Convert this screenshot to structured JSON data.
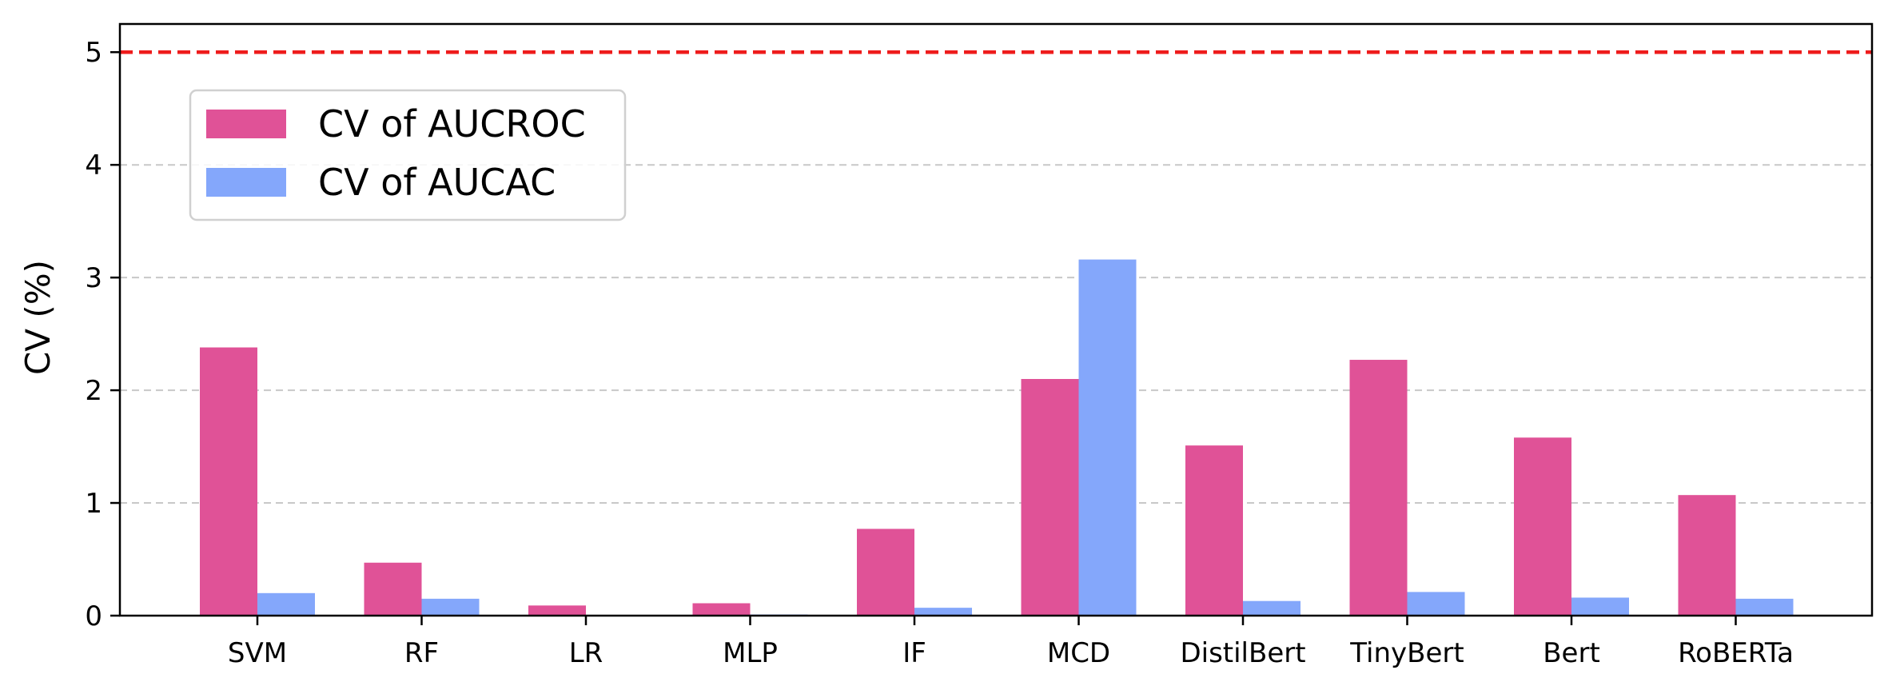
{
  "chart_data": {
    "type": "bar",
    "title": "",
    "xlabel": "",
    "ylabel": "CV (%)",
    "categories": [
      "SVM",
      "RF",
      "LR",
      "MLP",
      "IF",
      "MCD",
      "DistilBert",
      "TinyBert",
      "Bert",
      "RoBERTa"
    ],
    "series": [
      {
        "name": "CV of AUCROC",
        "color": "#e05297",
        "values": [
          2.38,
          0.47,
          0.09,
          0.11,
          0.77,
          2.1,
          1.51,
          2.27,
          1.58,
          1.07
        ]
      },
      {
        "name": "CV of AUCAC",
        "color": "#84a7fb",
        "values": [
          0.2,
          0.15,
          0.0,
          0.01,
          0.07,
          3.16,
          0.13,
          0.21,
          0.16,
          0.15
        ]
      }
    ],
    "ylim": [
      0,
      5.25
    ],
    "yticks": [
      0,
      1,
      2,
      3,
      4,
      5
    ],
    "threshold": {
      "value": 5,
      "color": "#ee1c1c",
      "style": "dashed"
    },
    "grid": {
      "axis": "y",
      "style": "dashed",
      "values": [
        1,
        2,
        3,
        4
      ]
    },
    "legend": "upper-left"
  }
}
